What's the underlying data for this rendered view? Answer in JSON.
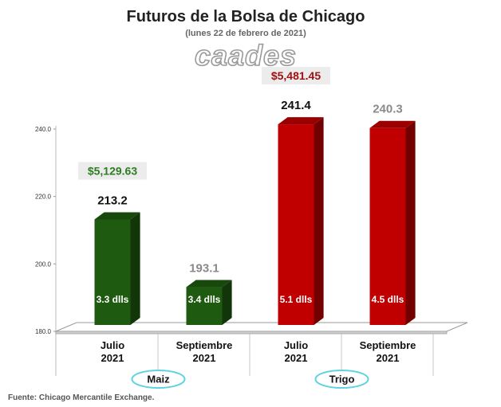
{
  "chart_data": {
    "type": "bar",
    "title": "Futuros de la Bolsa de Chicago",
    "subtitle": "(lunes 22 de febrero de 2021)",
    "logo": "caades",
    "source": "Fuente: Chicago Mercantile Exchange.",
    "ylim": [
      180,
      240
    ],
    "yticks": [
      "180.0",
      "200.0",
      "220.0",
      "240.0"
    ],
    "y_tick_values": [
      180,
      200,
      220,
      240
    ],
    "categories": [
      "Julio 2021",
      "Septiembre 2021",
      "Julio 2021",
      "Septiembre 2021"
    ],
    "category_lines": [
      [
        "Julio",
        "2021"
      ],
      [
        "Septiembre",
        "2021"
      ],
      [
        "Julio",
        "2021"
      ],
      [
        "Septiembre",
        "2021"
      ]
    ],
    "values": [
      213.2,
      193.1,
      241.4,
      240.3
    ],
    "value_labels": [
      "213.2",
      "193.1",
      "241.4",
      "240.3"
    ],
    "value_label_colors": [
      "#111111",
      "#8a8a8a",
      "#111111",
      "#8a8a8a"
    ],
    "in_bar_labels": [
      "3.3 dlls",
      "3.4 dlls",
      "5.1 dlls",
      "4.5 dlls"
    ],
    "bar_colors": [
      "#1e5a0f",
      "#1e5a0f",
      "#c00000",
      "#c00000"
    ],
    "groups": [
      {
        "name": "Maiz",
        "bars": [
          0,
          1
        ]
      },
      {
        "name": "Trigo",
        "bars": [
          2,
          3
        ]
      }
    ],
    "badges": [
      {
        "bar": 0,
        "text": "$5,129.63",
        "color": "#2e7d20"
      },
      {
        "bar": 2,
        "text": "$5,481.45",
        "color": "#a01010"
      }
    ],
    "grid": false,
    "group_ellipse_color": "#5fd3e0"
  }
}
